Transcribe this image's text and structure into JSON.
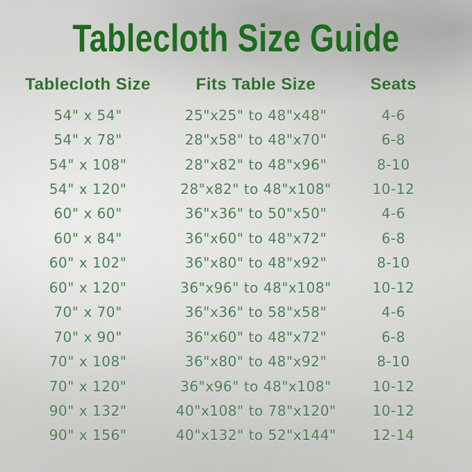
{
  "title": "Tablecloth Size Guide",
  "colors": {
    "title_green": "#1e6a1e",
    "header_green": "#2e6f2e",
    "row_green": "#4c7d54",
    "background_silver": "#d6d7d3"
  },
  "chart_data": {
    "type": "table",
    "title": "Tablecloth Size Guide",
    "columns": [
      "Tablecloth Size",
      "Fits Table Size",
      "Seats"
    ],
    "rows": [
      [
        "54\" x 54\"",
        "25\"x25\" to 48\"x48\"",
        "4-6"
      ],
      [
        "54\" x 78\"",
        "28\"x58\" to 48\"x70\"",
        "6-8"
      ],
      [
        "54\" x 108\"",
        "28\"x82\" to 48\"x96\"",
        "8-10"
      ],
      [
        "54\" x 120\"",
        "28\"x82\" to 48\"x108\"",
        "10-12"
      ],
      [
        "60\" x 60\"",
        "36\"x36\" to 50\"x50\"",
        "4-6"
      ],
      [
        "60\" x 84\"",
        "36\"x60\" to 48\"x72\"",
        "6-8"
      ],
      [
        "60\" x 102\"",
        "36\"x80\" to 48\"x92\"",
        "8-10"
      ],
      [
        "60\" x 120\"",
        "36\"x96\" to 48\"x108\"",
        "10-12"
      ],
      [
        "70\" x 70\"",
        "36\"x36\" to 58\"x58\"",
        "4-6"
      ],
      [
        "70\" x 90\"",
        "36\"x60\" to 48\"x72\"",
        "6-8"
      ],
      [
        "70\" x 108\"",
        "36\"x80\" to 48\"x92\"",
        "8-10"
      ],
      [
        "70\" x 120\"",
        "36\"x96\" to 48\"x108\"",
        "10-12"
      ],
      [
        "90\" x 132\"",
        "40\"x108\" to 78\"x120\"",
        "10-12"
      ],
      [
        "90\" x 156\"",
        "40\"x132\" to 52\"x144\"",
        "12-14"
      ]
    ]
  }
}
